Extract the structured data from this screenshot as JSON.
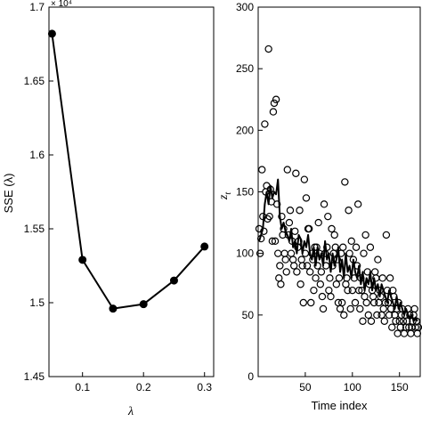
{
  "chart_data": [
    {
      "type": "line",
      "xlabel": "λ",
      "ylabel": "SSE (λ)",
      "y_multiplier_label": "× 10⁴",
      "xlim": [
        0.045,
        0.315
      ],
      "ylim": [
        1.45,
        1.7
      ],
      "xticks": [
        0.1,
        0.2,
        0.3
      ],
      "xtick_labels": [
        "0.1",
        "0.2",
        "0.3"
      ],
      "yticks": [
        1.45,
        1.5,
        1.55,
        1.6,
        1.65,
        1.7
      ],
      "ytick_labels": [
        "1.45",
        "1.5",
        "1.55",
        "1.6",
        "1.65",
        "1.7"
      ],
      "series": [
        {
          "x": [
            0.05,
            0.1,
            0.15,
            0.2,
            0.25,
            0.3
          ],
          "y": [
            1.682,
            1.529,
            1.496,
            1.499,
            1.515,
            1.538
          ],
          "marker": "filled-circle"
        }
      ]
    },
    {
      "type": "scatter",
      "xlabel": "Time index",
      "ylabel": "z",
      "ylabel_subscript": "t",
      "xlim": [
        0,
        172
      ],
      "ylim": [
        0,
        300
      ],
      "xticks": [
        50,
        100,
        150
      ],
      "xtick_labels": [
        "50",
        "100",
        "150"
      ],
      "yticks": [
        0,
        50,
        100,
        150,
        200,
        250,
        300
      ],
      "ytick_labels": [
        "0",
        "50",
        "100",
        "150",
        "200",
        "250",
        "300"
      ],
      "observed": {
        "x": [
          1,
          2,
          3,
          4,
          5,
          6,
          7,
          8,
          9,
          10,
          11,
          12,
          13,
          14,
          15,
          16,
          17,
          18,
          19,
          20,
          21,
          22,
          23,
          24,
          25,
          26,
          27,
          28,
          29,
          30,
          31,
          32,
          33,
          34,
          35,
          36,
          37,
          38,
          39,
          40,
          41,
          42,
          43,
          44,
          45,
          46,
          47,
          48,
          49,
          50,
          51,
          52,
          53,
          54,
          55,
          56,
          57,
          58,
          59,
          60,
          61,
          62,
          63,
          64,
          65,
          66,
          67,
          68,
          69,
          70,
          71,
          72,
          73,
          74,
          75,
          76,
          77,
          78,
          79,
          80,
          81,
          82,
          83,
          84,
          85,
          86,
          87,
          88,
          89,
          90,
          91,
          92,
          93,
          94,
          95,
          96,
          97,
          98,
          99,
          100,
          101,
          102,
          103,
          104,
          105,
          106,
          107,
          108,
          109,
          110,
          111,
          112,
          113,
          114,
          115,
          116,
          117,
          118,
          119,
          120,
          121,
          122,
          123,
          124,
          125,
          126,
          127,
          128,
          129,
          130,
          131,
          132,
          133,
          134,
          135,
          136,
          137,
          138,
          139,
          140,
          141,
          142,
          143,
          144,
          145,
          146,
          147,
          148,
          149,
          150,
          151,
          152,
          153,
          154,
          155,
          156,
          157,
          158,
          159,
          160,
          161,
          162,
          163,
          164,
          165,
          166,
          167,
          168,
          169,
          170
        ],
        "y": [
          120,
          100,
          112,
          168,
          130,
          118,
          205,
          150,
          155,
          128,
          266,
          130,
          152,
          142,
          110,
          215,
          222,
          110,
          225,
          140,
          100,
          80,
          90,
          75,
          130,
          115,
          120,
          100,
          95,
          85,
          168,
          115,
          125,
          135,
          100,
          110,
          95,
          90,
          118,
          165,
          85,
          105,
          110,
          135,
          75,
          95,
          90,
          60,
          160,
          100,
          145,
          90,
          120,
          120,
          85,
          60,
          100,
          95,
          70,
          105,
          80,
          105,
          90,
          125,
          100,
          75,
          85,
          65,
          55,
          140,
          100,
          90,
          105,
          130,
          70,
          80,
          65,
          120,
          90,
          100,
          115,
          105,
          75,
          95,
          60,
          80,
          55,
          100,
          60,
          105,
          50,
          158,
          75,
          80,
          70,
          135,
          100,
          55,
          110,
          70,
          95,
          80,
          60,
          105,
          90,
          140,
          70,
          55,
          80,
          70,
          45,
          100,
          65,
          115,
          60,
          85,
          50,
          75,
          105,
          45,
          70,
          65,
          60,
          85,
          80,
          50,
          95,
          60,
          70,
          65,
          50,
          80,
          55,
          45,
          60,
          115,
          70,
          60,
          50,
          80,
          55,
          40,
          70,
          65,
          50,
          45,
          55,
          35,
          60,
          45,
          40,
          50,
          55,
          45,
          35,
          50,
          40,
          45,
          55,
          40,
          50,
          35,
          40,
          45,
          50,
          55,
          40,
          45,
          35,
          40
        ]
      },
      "fitted": {
        "x": [
          1,
          3,
          5,
          7,
          9,
          11,
          13,
          15,
          17,
          19,
          21,
          23,
          25,
          27,
          29,
          31,
          33,
          35,
          37,
          39,
          41,
          43,
          45,
          47,
          49,
          51,
          53,
          55,
          57,
          59,
          61,
          63,
          65,
          67,
          69,
          71,
          73,
          75,
          77,
          79,
          81,
          83,
          85,
          87,
          89,
          91,
          93,
          95,
          97,
          99,
          101,
          103,
          105,
          107,
          109,
          111,
          113,
          115,
          117,
          119,
          121,
          123,
          125,
          127,
          129,
          131,
          133,
          135,
          137,
          139,
          141,
          143,
          145,
          147,
          149,
          151,
          153,
          155,
          157,
          159,
          161,
          163,
          165,
          167,
          169
        ],
        "y": [
          110,
          115,
          120,
          140,
          150,
          140,
          155,
          145,
          150,
          148,
          160,
          130,
          120,
          125,
          118,
          115,
          110,
          120,
          105,
          110,
          100,
          115,
          112,
          100,
          110,
          105,
          115,
          100,
          95,
          105,
          90,
          105,
          95,
          100,
          90,
          110,
          95,
          100,
          85,
          100,
          90,
          95,
          105,
          85,
          95,
          80,
          100,
          85,
          90,
          80,
          95,
          85,
          80,
          90,
          75,
          85,
          70,
          80,
          75,
          85,
          70,
          80,
          70,
          75,
          65,
          75,
          70,
          65,
          60,
          70,
          65,
          60,
          55,
          65,
          55,
          60,
          55,
          50,
          55,
          50,
          48,
          50,
          45,
          48,
          45
        ]
      }
    }
  ]
}
